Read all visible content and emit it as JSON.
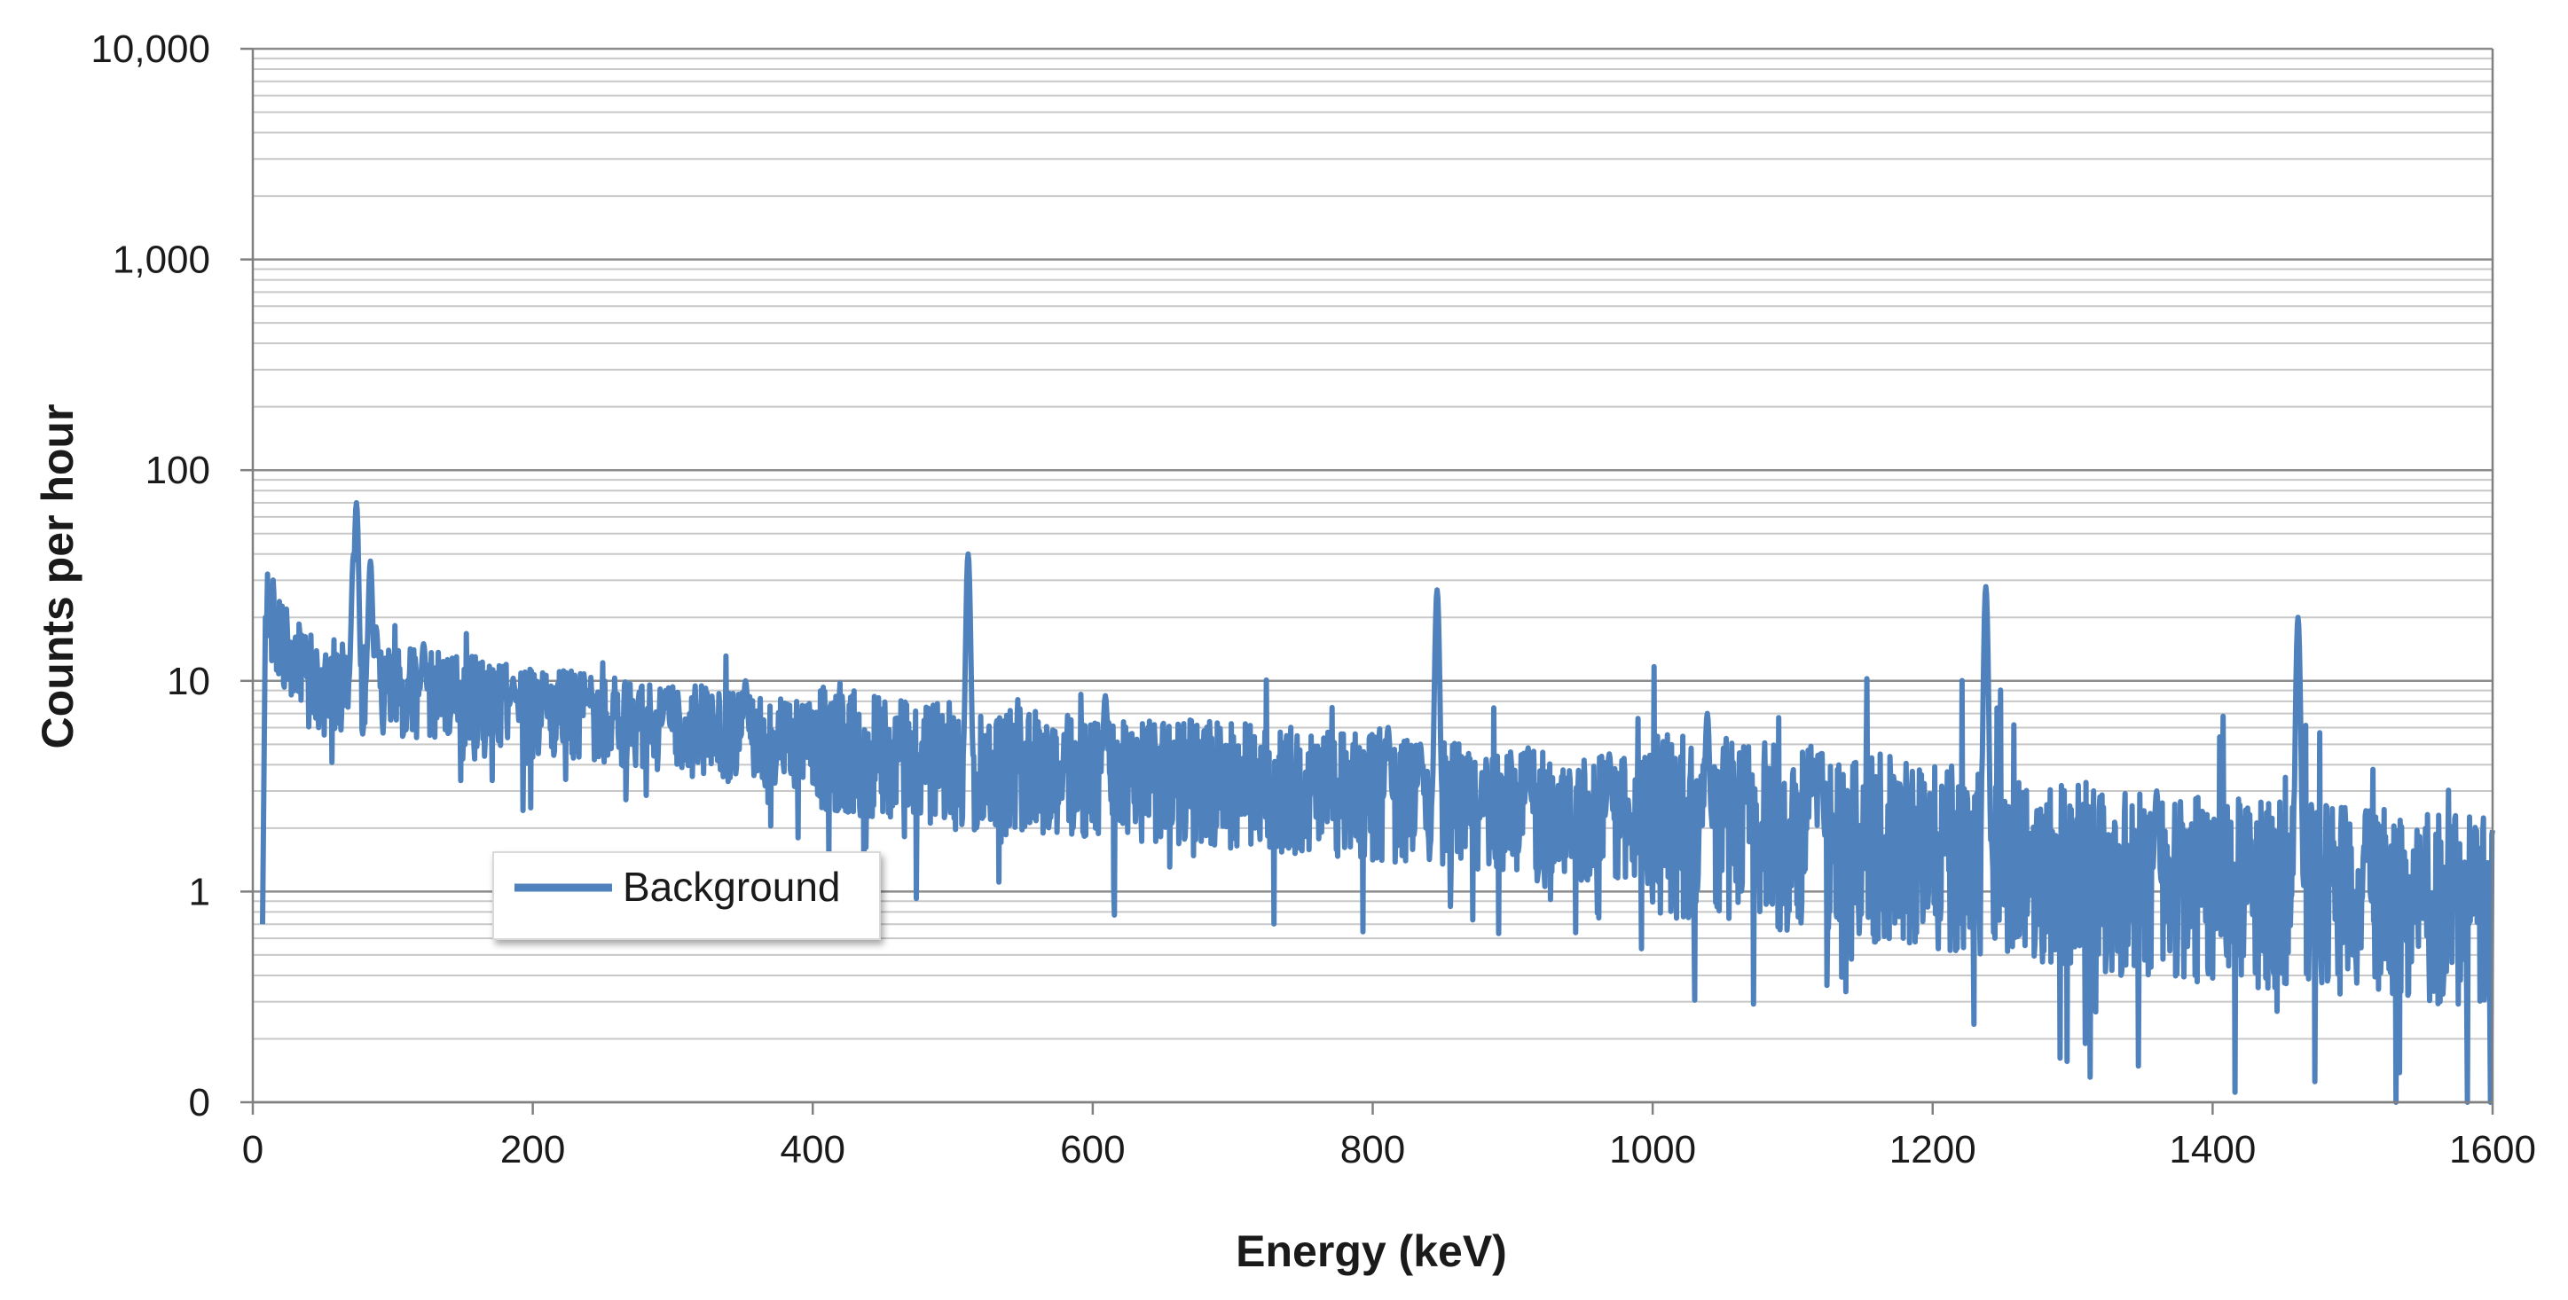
{
  "chart_data": {
    "type": "line",
    "title": "",
    "xlabel": "Energy (keV)",
    "ylabel": "Counts per hour",
    "xlim": [
      0,
      1600
    ],
    "ylim_log": [
      0.1,
      10000
    ],
    "y_scale": "log",
    "grid": "horizontal major and minor",
    "legend_position": "lower-left",
    "x_ticks": [
      {
        "value": 0,
        "label": "0"
      },
      {
        "value": 200,
        "label": "200"
      },
      {
        "value": 400,
        "label": "400"
      },
      {
        "value": 600,
        "label": "600"
      },
      {
        "value": 800,
        "label": "800"
      },
      {
        "value": 1000,
        "label": "1000"
      },
      {
        "value": 1200,
        "label": "1200"
      },
      {
        "value": 1400,
        "label": "1400"
      },
      {
        "value": 1600,
        "label": "1600"
      }
    ],
    "y_ticks": [
      {
        "value": 0.1,
        "label": "0"
      },
      {
        "value": 1,
        "label": "1"
      },
      {
        "value": 10,
        "label": "10"
      },
      {
        "value": 100,
        "label": "100"
      },
      {
        "value": 1000,
        "label": "1,000"
      },
      {
        "value": 10000,
        "label": "10,000"
      }
    ],
    "series": [
      {
        "name": "Background",
        "color": "#4f81bd",
        "continuum": [
          [
            7,
            0.7
          ],
          [
            9,
            20
          ],
          [
            12,
            21
          ],
          [
            20,
            15
          ],
          [
            30,
            12
          ],
          [
            40,
            10
          ],
          [
            60,
            9.5
          ],
          [
            100,
            8.8
          ],
          [
            150,
            8
          ],
          [
            200,
            7.2
          ],
          [
            300,
            6
          ],
          [
            400,
            4.8
          ],
          [
            500,
            4
          ],
          [
            600,
            3.5
          ],
          [
            700,
            3.2
          ],
          [
            800,
            2.8
          ],
          [
            900,
            2.4
          ],
          [
            1000,
            2.1
          ],
          [
            1100,
            1.8
          ],
          [
            1200,
            1.5
          ],
          [
            1300,
            1.2
          ],
          [
            1400,
            1.0
          ],
          [
            1500,
            0.9
          ],
          [
            1600,
            0.8
          ]
        ],
        "peaks": [
          {
            "energy": 74,
            "counts": 70
          },
          {
            "energy": 72,
            "counts": 40
          },
          {
            "energy": 84,
            "counts": 37
          },
          {
            "energy": 88,
            "counts": 18
          },
          {
            "energy": 122,
            "counts": 15
          },
          {
            "energy": 186,
            "counts": 10
          },
          {
            "energy": 239,
            "counts": 9
          },
          {
            "energy": 295,
            "counts": 9
          },
          {
            "energy": 352,
            "counts": 10
          },
          {
            "energy": 511,
            "counts": 40
          },
          {
            "energy": 609,
            "counts": 8.5
          },
          {
            "energy": 811,
            "counts": 6
          },
          {
            "energy": 834,
            "counts": 5
          },
          {
            "energy": 846,
            "counts": 27
          },
          {
            "energy": 911,
            "counts": 4.8
          },
          {
            "energy": 969,
            "counts": 4.5
          },
          {
            "energy": 1039,
            "counts": 7
          },
          {
            "energy": 1115,
            "counts": 4.2
          },
          {
            "energy": 1120,
            "counts": 4.5
          },
          {
            "energy": 1238,
            "counts": 28
          },
          {
            "energy": 1360,
            "counts": 3
          },
          {
            "energy": 1461,
            "counts": 20
          },
          {
            "energy": 1510,
            "counts": 2
          }
        ]
      }
    ]
  },
  "legend": {
    "entries": [
      {
        "label": "Background",
        "color": "#4f81bd"
      }
    ]
  }
}
